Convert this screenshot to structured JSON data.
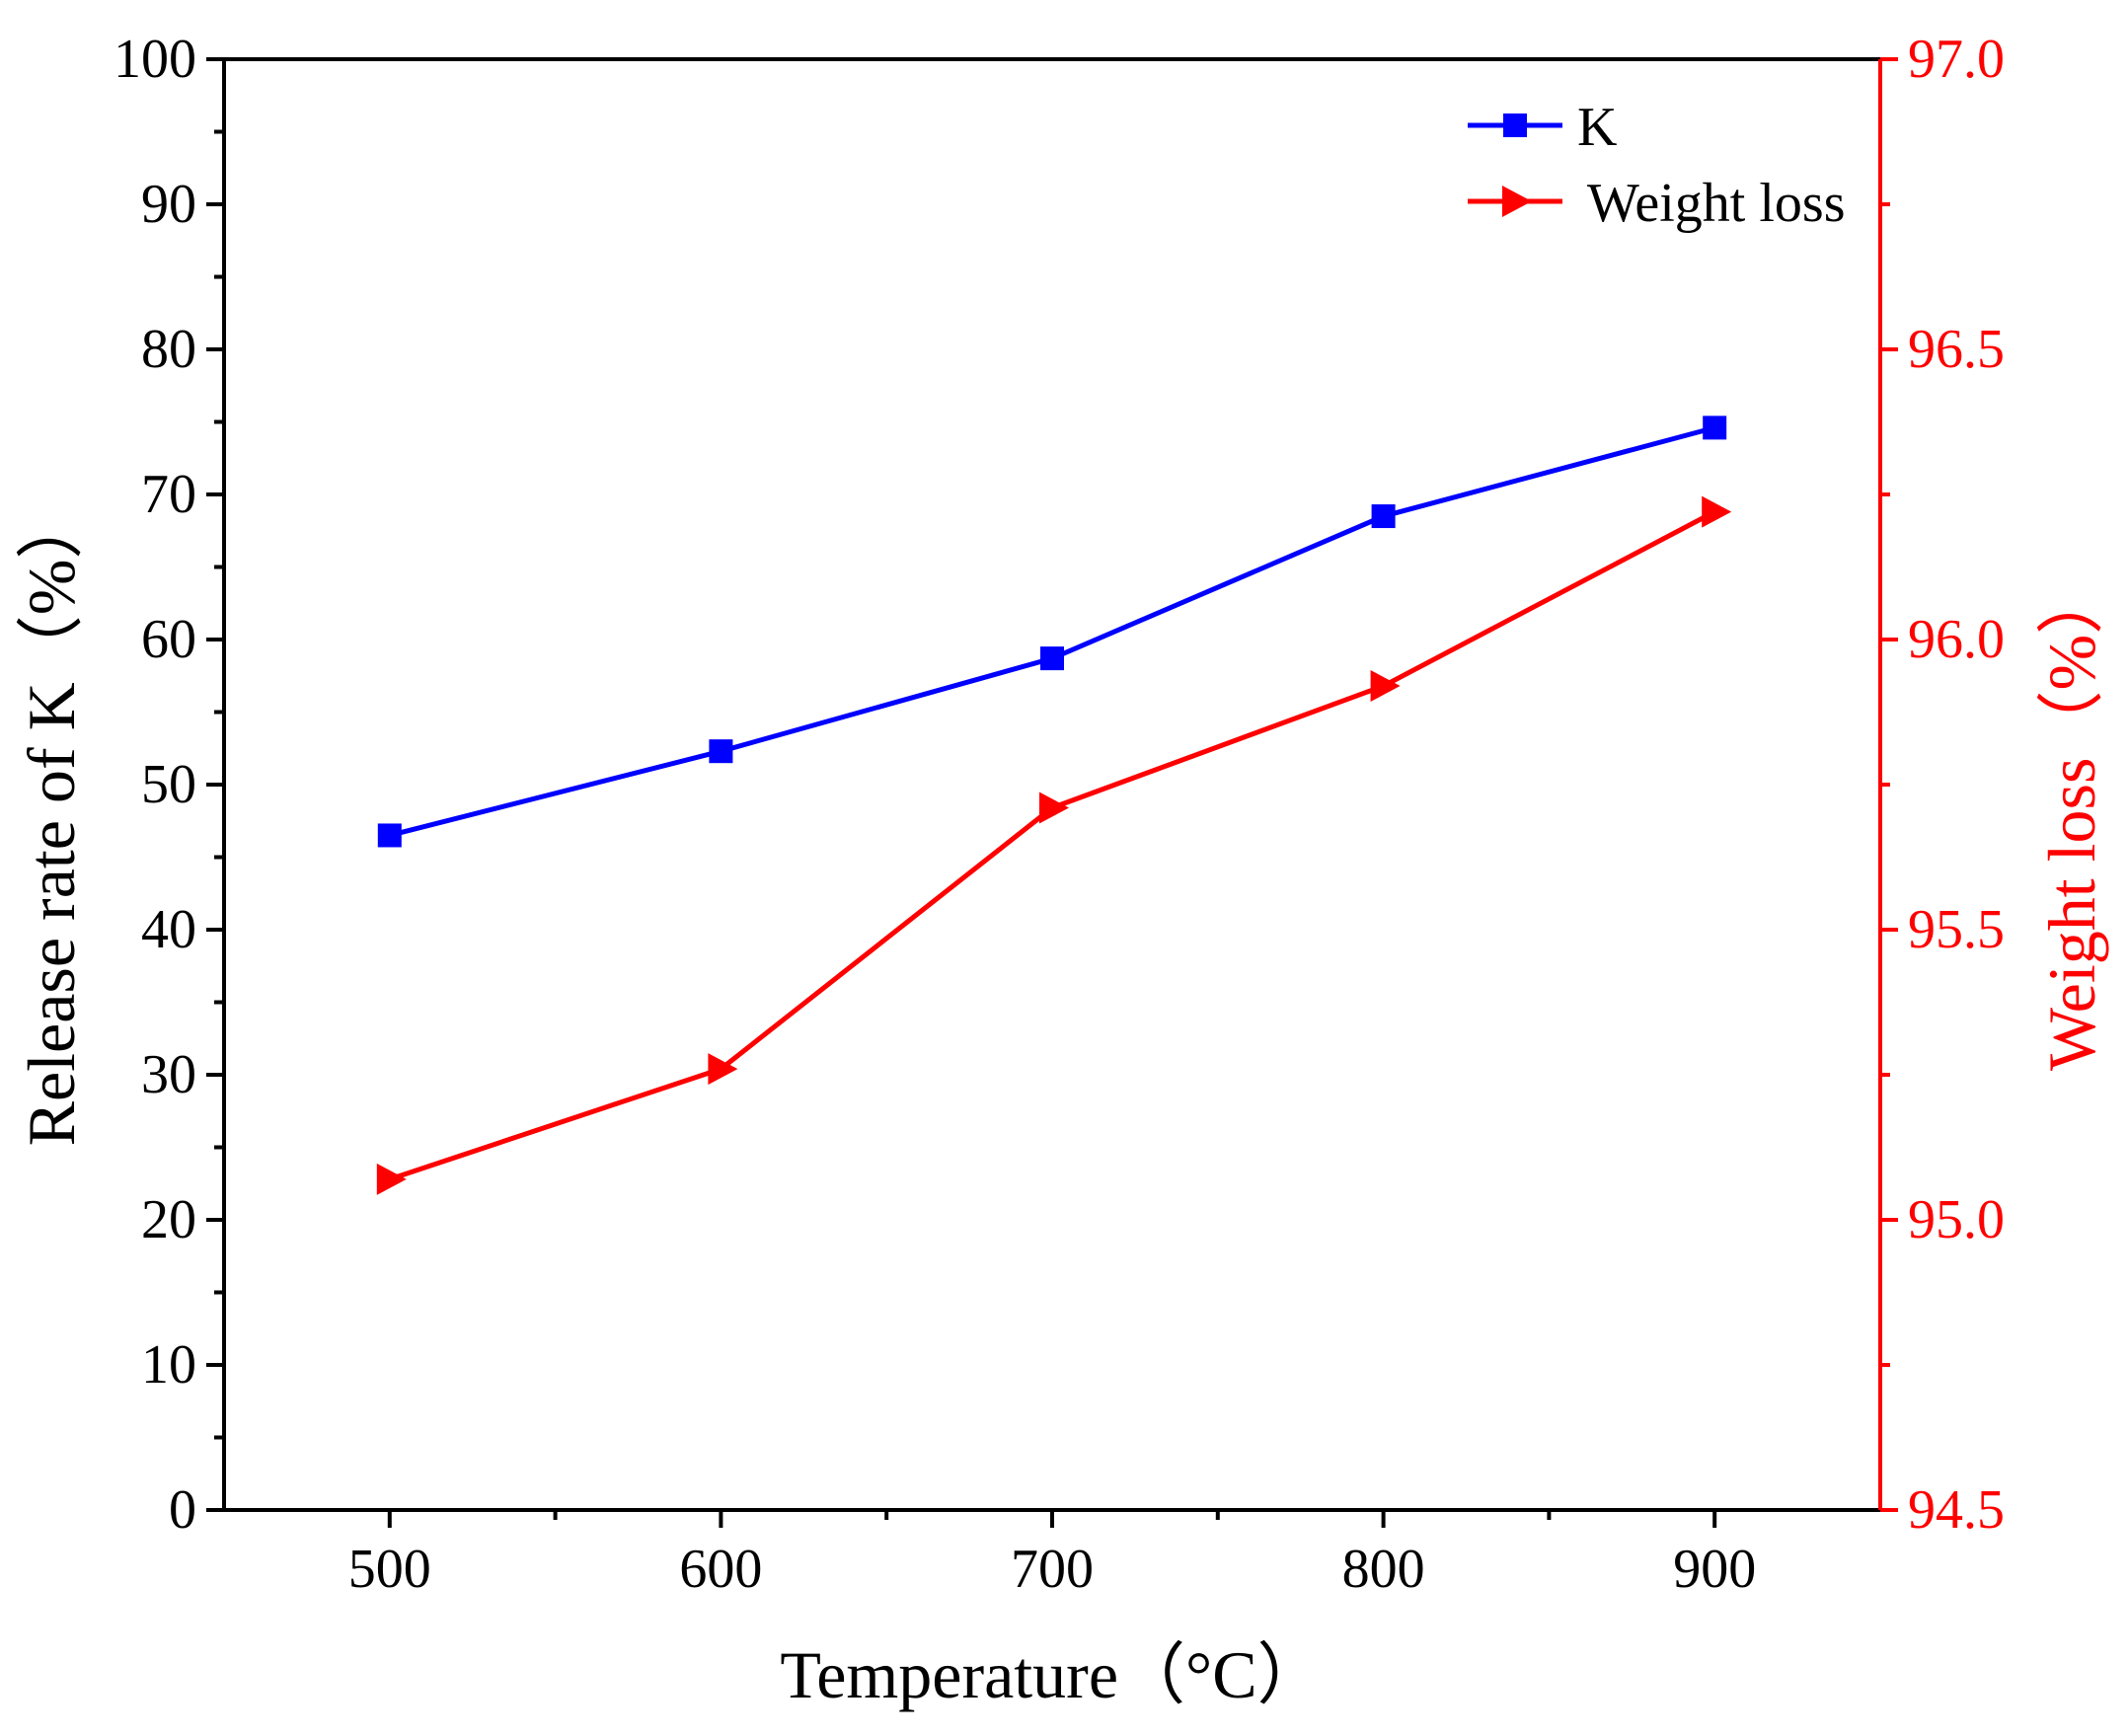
{
  "chart_data": {
    "type": "line",
    "x": [
      500,
      600,
      700,
      800,
      900
    ],
    "xlim": [
      450,
      950
    ],
    "x_ticks": [
      "500",
      "600",
      "700",
      "800",
      "900"
    ],
    "xlabel": "Temperature（°C）",
    "ylabel_left": "Release rate of K（%）",
    "ylabel_right": "Weight loss（%）",
    "ylim_left": [
      0,
      100
    ],
    "ylim_right": [
      94.5,
      97.0
    ],
    "left_ticks": [
      "0",
      "10",
      "20",
      "30",
      "40",
      "50",
      "60",
      "70",
      "80",
      "90",
      "100"
    ],
    "right_ticks": [
      "94.5",
      "95.0",
      "95.5",
      "96.0",
      "96.5",
      "97.0"
    ],
    "series": [
      {
        "name": "K",
        "axis": "left",
        "color": "#0000ff",
        "marker": "square",
        "values": [
          46.5,
          52.3,
          58.7,
          68.5,
          74.6
        ]
      },
      {
        "name": "Weight loss",
        "axis": "right",
        "color": "#ff0000",
        "marker": "triangle-right",
        "values": [
          95.07,
          95.26,
          95.71,
          95.92,
          96.22
        ]
      }
    ],
    "legend_position": "top-right",
    "grid": false
  }
}
